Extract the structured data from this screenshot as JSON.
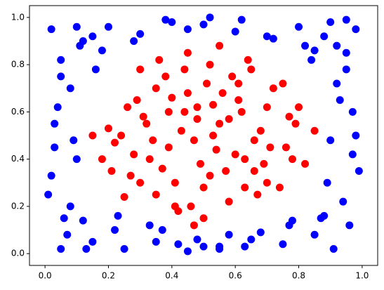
{
  "chart_data": {
    "type": "scatter",
    "xlim": [
      -0.049,
      1.049
    ],
    "ylim": [
      -0.05,
      1.05
    ],
    "xticks": [
      {
        "value": 0,
        "label": "0.0"
      },
      {
        "value": 0.2,
        "label": "0.2"
      },
      {
        "value": 0.4,
        "label": "0.4"
      },
      {
        "value": 0.6,
        "label": "0.6"
      },
      {
        "value": 0.8,
        "label": "0.8"
      },
      {
        "value": 1,
        "label": "1.0"
      }
    ],
    "yticks": [
      {
        "value": 0,
        "label": "0.0"
      },
      {
        "value": 0.2,
        "label": "0.2"
      },
      {
        "value": 0.4,
        "label": "0.4"
      },
      {
        "value": 0.6,
        "label": "0.6"
      },
      {
        "value": 0.8,
        "label": "0.8"
      },
      {
        "value": 1,
        "label": "1.0"
      }
    ],
    "series": [
      {
        "color": "#0000ff",
        "x": [
          0.02,
          0.05,
          0.08,
          0.12,
          0.03,
          0.1,
          0.01,
          0.06,
          0.15,
          0.04,
          0.09,
          0.02,
          0.07,
          0.13,
          0.05,
          0.11,
          0.03,
          0.08,
          0.98,
          0.95,
          0.92,
          0.88,
          0.97,
          0.9,
          0.99,
          0.94,
          0.85,
          0.96,
          0.91,
          0.98,
          0.93,
          0.87,
          0.95,
          0.89,
          0.97,
          0.92,
          0.2,
          0.3,
          0.4,
          0.5,
          0.6,
          0.7,
          0.8,
          0.25,
          0.35,
          0.45,
          0.55,
          0.65,
          0.75,
          0.22,
          0.33,
          0.48,
          0.58,
          0.68,
          0.78,
          0.18,
          0.28,
          0.38,
          0.52,
          0.62,
          0.72,
          0.82,
          0.15,
          0.42,
          0.85,
          0.23,
          0.37,
          0.63,
          0.77,
          0.1,
          0.9,
          0.12,
          0.88,
          0.05,
          0.95,
          0.16,
          0.84,
          0.45,
          0.55,
          0.5
        ],
        "y": [
          0.95,
          0.82,
          0.7,
          0.9,
          0.55,
          0.4,
          0.25,
          0.15,
          0.05,
          0.62,
          0.48,
          0.33,
          0.08,
          0.02,
          0.75,
          0.88,
          0.45,
          0.2,
          0.95,
          0.85,
          0.72,
          0.92,
          0.6,
          0.48,
          0.35,
          0.22,
          0.08,
          0.12,
          0.02,
          0.5,
          0.65,
          0.15,
          0.78,
          0.3,
          0.42,
          0.88,
          0.96,
          0.93,
          0.98,
          0.97,
          0.94,
          0.92,
          0.96,
          0.02,
          0.05,
          0.01,
          0.03,
          0.06,
          0.04,
          0.1,
          0.12,
          0.06,
          0.08,
          0.09,
          0.14,
          0.86,
          0.9,
          0.99,
          1.0,
          0.99,
          0.91,
          0.88,
          0.92,
          0.04,
          0.86,
          0.16,
          0.1,
          0.03,
          0.12,
          0.96,
          0.98,
          0.14,
          0.16,
          0.02,
          0.99,
          0.78,
          0.82,
          0.95,
          0.02,
          0.03
        ]
      },
      {
        "color": "#ff0000",
        "x": [
          0.45,
          0.52,
          0.61,
          0.38,
          0.29,
          0.7,
          0.55,
          0.47,
          0.33,
          0.66,
          0.24,
          0.76,
          0.41,
          0.58,
          0.5,
          0.35,
          0.63,
          0.27,
          0.72,
          0.44,
          0.56,
          0.31,
          0.68,
          0.49,
          0.39,
          0.6,
          0.22,
          0.79,
          0.53,
          0.46,
          0.36,
          0.65,
          0.18,
          0.82,
          0.43,
          0.57,
          0.3,
          0.74,
          0.51,
          0.4,
          0.62,
          0.26,
          0.71,
          0.48,
          0.34,
          0.67,
          0.2,
          0.8,
          0.54,
          0.42,
          0.59,
          0.37,
          0.64,
          0.28,
          0.77,
          0.45,
          0.55,
          0.32,
          0.69,
          0.5,
          0.15,
          0.85,
          0.47,
          0.53,
          0.25,
          0.75,
          0.39,
          0.61,
          0.44,
          0.58,
          0.35,
          0.66,
          0.52,
          0.48,
          0.21,
          0.78,
          0.41,
          0.63,
          0.3,
          0.7
        ],
        "y": [
          0.85,
          0.8,
          0.72,
          0.75,
          0.65,
          0.62,
          0.55,
          0.48,
          0.4,
          0.35,
          0.5,
          0.45,
          0.3,
          0.22,
          0.15,
          0.25,
          0.28,
          0.33,
          0.7,
          0.6,
          0.68,
          0.58,
          0.52,
          0.38,
          0.45,
          0.42,
          0.47,
          0.55,
          0.63,
          0.2,
          0.82,
          0.78,
          0.4,
          0.38,
          0.52,
          0.35,
          0.3,
          0.28,
          0.72,
          0.66,
          0.6,
          0.62,
          0.45,
          0.57,
          0.48,
          0.25,
          0.53,
          0.62,
          0.44,
          0.18,
          0.75,
          0.36,
          0.82,
          0.42,
          0.58,
          0.68,
          0.88,
          0.55,
          0.38,
          0.28,
          0.5,
          0.52,
          0.12,
          0.5,
          0.24,
          0.72,
          0.6,
          0.65,
          0.78,
          0.57,
          0.7,
          0.48,
          0.33,
          0.62,
          0.35,
          0.4,
          0.2,
          0.4,
          0.78,
          0.3
        ]
      }
    ]
  }
}
